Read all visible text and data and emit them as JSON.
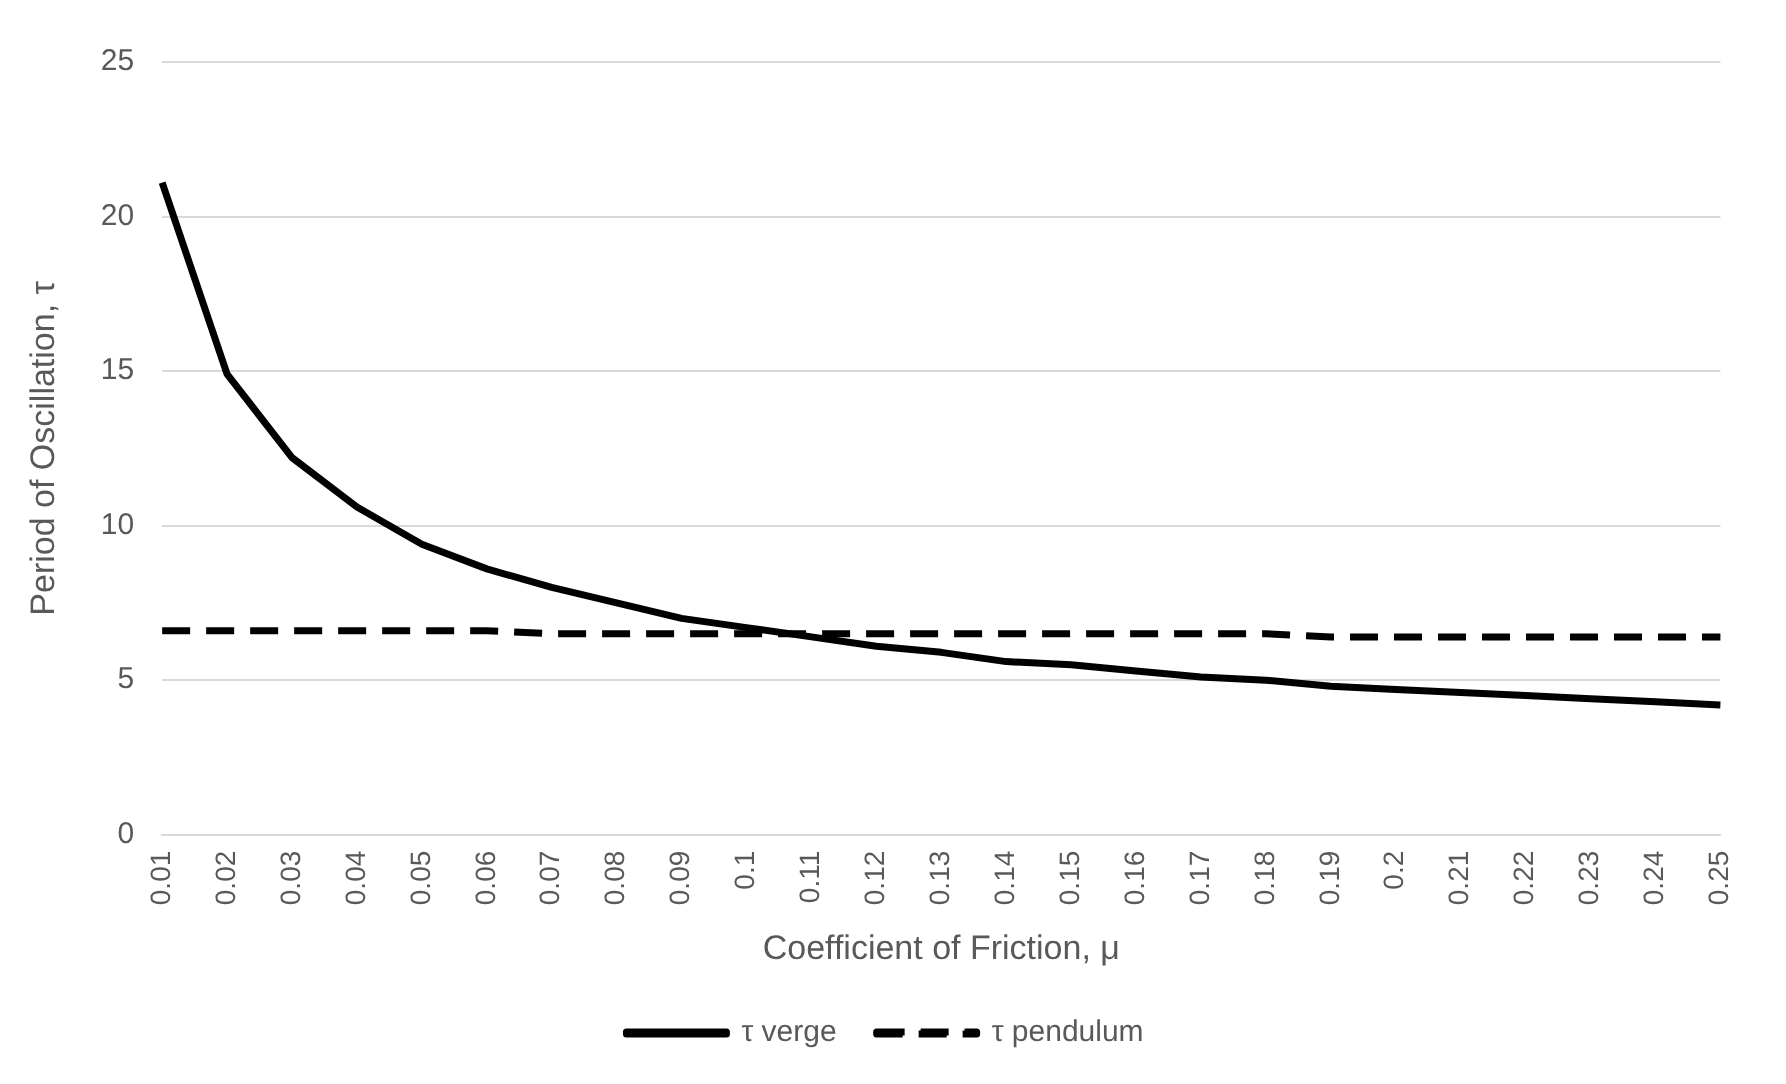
{
  "chart_data": {
    "type": "line",
    "xlabel": "Coefficient of Friction, μ",
    "ylabel": "Period of Oscillation, τ",
    "categories": [
      "0.01",
      "0.02",
      "0.03",
      "0.04",
      "0.05",
      "0.06",
      "0.07",
      "0.08",
      "0.09",
      "0.1",
      "0.11",
      "0.12",
      "0.13",
      "0.14",
      "0.15",
      "0.16",
      "0.17",
      "0.18",
      "0.19",
      "0.2",
      "0.21",
      "0.22",
      "0.23",
      "0.24",
      "0.25"
    ],
    "series": [
      {
        "name": "τ verge",
        "color": "#000000",
        "line_style": "solid",
        "values": [
          21.1,
          14.9,
          12.2,
          10.6,
          9.4,
          8.6,
          8.0,
          7.5,
          7.0,
          6.7,
          6.4,
          6.1,
          5.9,
          5.6,
          5.5,
          5.3,
          5.1,
          5.0,
          4.8,
          4.7,
          4.6,
          4.5,
          4.4,
          4.3,
          4.2
        ]
      },
      {
        "name": "τ pendulum",
        "color": "#000000",
        "line_style": "dashed",
        "values": [
          6.6,
          6.6,
          6.6,
          6.6,
          6.6,
          6.6,
          6.5,
          6.5,
          6.5,
          6.5,
          6.5,
          6.5,
          6.5,
          6.5,
          6.5,
          6.5,
          6.5,
          6.5,
          6.4,
          6.4,
          6.4,
          6.4,
          6.4,
          6.4,
          6.4
        ]
      }
    ],
    "ylim": [
      0,
      25
    ],
    "yticks": [
      0,
      5,
      10,
      15,
      20,
      25
    ],
    "grid": "y",
    "legend": "bottom",
    "marker": "none"
  }
}
